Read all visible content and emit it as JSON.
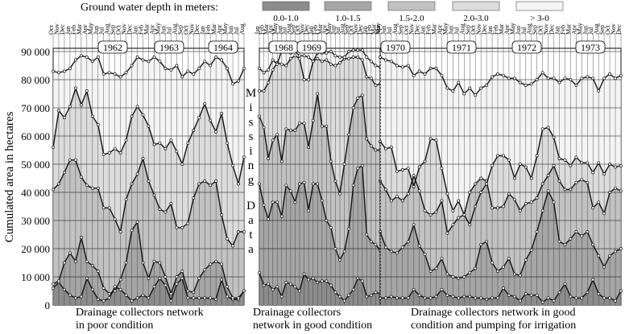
{
  "chart_data": {
    "type": "area",
    "title": "",
    "ylabel": "Cumulated area in hectares",
    "ylim": [
      0,
      95000
    ],
    "yticks": [
      0,
      10000,
      20000,
      30000,
      40000,
      50000,
      60000,
      70000,
      80000,
      90000
    ],
    "ytick_labels": [
      "0",
      "10 000",
      "20 000",
      "30 000",
      "40 000",
      "50 000",
      "60 000",
      "70 000",
      "80 000",
      "90 000"
    ],
    "legend_title": "Ground water depth in meters:",
    "legend": [
      {
        "label": "0.0-1.0",
        "color": "#8c8c8c"
      },
      {
        "label": "1.0-1.5",
        "color": "#a6a6a6"
      },
      {
        "label": "1.5-2.0",
        "color": "#c2c2c2"
      },
      {
        "label": "2.0-3.0",
        "color": "#dcdcdc"
      },
      {
        "label": "> 3-0",
        "color": "#f4f4f4"
      }
    ],
    "missing_data_label": [
      "M",
      "i",
      "s",
      "s",
      "i",
      "n",
      "g",
      "D",
      "a",
      "t",
      "a"
    ],
    "periods": [
      {
        "caption": [
          "Drainage collectors network",
          "in poor condition"
        ],
        "years": [
          "1962",
          "1963",
          "1964"
        ],
        "months": [
          "Oct",
          "Nov",
          "Dec",
          "Jan",
          "Feb",
          "Mar",
          "Apr",
          "May",
          "Jun",
          "Jul",
          "Aug",
          "Sep",
          "Oct",
          "Nov",
          "Dec",
          "Jan",
          "Feb",
          "Mar",
          "Apr",
          "May",
          "Jun",
          "Jul",
          "Aug",
          "Sep",
          "Oct",
          "Nov",
          "Dec",
          "Jan",
          "Feb",
          "Mar",
          "Apr",
          "May",
          "Jun",
          "Jul",
          "Aug"
        ],
        "series": [
          {
            "name": "0.0-1.0",
            "values": [
              6000,
              8000,
              5500,
              3500,
              2500,
              3000,
              9500,
              5500,
              2000,
              1500,
              2500,
              6500,
              5500,
              3500,
              1500,
              2500,
              3500,
              2500,
              6500,
              9500,
              7000,
              1500,
              7500,
              9500,
              2500,
              2500,
              2500,
              2500,
              2500,
              2000,
              9000,
              3000,
              2000,
              2000,
              5000
            ]
          },
          {
            "name": "1.0-1.5",
            "values": [
              7500,
              8500,
              15000,
              18500,
              15500,
              24000,
              15500,
              14000,
              12000,
              6000,
              4000,
              5000,
              9000,
              15000,
              26500,
              29500,
              15000,
              9500,
              15500,
              15000,
              10000,
              4000,
              10000,
              12000,
              5000,
              4500,
              9500,
              12500,
              14500,
              15500,
              14500,
              6500,
              2500,
              2500,
              5000
            ]
          },
          {
            "name": "1.5-2.0",
            "values": [
              41000,
              43000,
              47000,
              51500,
              51500,
              45500,
              42500,
              41500,
              41500,
              34500,
              34500,
              30500,
              26000,
              37500,
              43000,
              46500,
              52000,
              44000,
              39000,
              34000,
              33000,
              36000,
              27500,
              27500,
              29000,
              38000,
              43000,
              44000,
              42500,
              44000,
              32000,
              23500,
              21000,
              26000,
              26000
            ]
          },
          {
            "name": "2.0-3.0",
            "values": [
              56000,
              69000,
              66500,
              70500,
              77000,
              71000,
              76000,
              67000,
              64000,
              53500,
              54000,
              55500,
              54000,
              58500,
              67000,
              70500,
              67500,
              63500,
              57000,
              57500,
              55500,
              58500,
              54500,
              50000,
              57500,
              62000,
              66500,
              71500,
              65500,
              61500,
              68000,
              57500,
              49500,
              43000,
              52500
            ]
          },
          {
            "name": "> 3-0",
            "values": [
              83000,
              82500,
              83000,
              84000,
              87000,
              88500,
              88000,
              86500,
              88000,
              82000,
              82500,
              82000,
              81000,
              82500,
              85000,
              88000,
              87000,
              86500,
              88000,
              86500,
              84000,
              83500,
              85000,
              81000,
              83000,
              82000,
              84000,
              86500,
              85000,
              88000,
              87000,
              84000,
              78500,
              79500,
              84000
            ]
          }
        ]
      },
      {
        "caption": [
          "Drainage collectors",
          "network in good condition"
        ],
        "years": [
          "1968",
          "1969"
        ],
        "months": [
          "Jan",
          "Feb",
          "Mar",
          "Apr",
          "May",
          "Jun",
          "Jul",
          "Aug",
          "Sep",
          "Oct",
          "Nov",
          "Dec",
          "Jan",
          "Feb",
          "Mar",
          "Apr",
          "May",
          "Jun",
          "Jul",
          "Aug",
          "Sep",
          "Oct",
          "Nov",
          "Dec",
          "Jan",
          "Feb",
          "Mar",
          "Apr"
        ],
        "series": [
          {
            "name": "0.0-1.0",
            "values": [
              11500,
              7000,
              7500,
              5500,
              6500,
              3000,
              8000,
              7500,
              6500,
              5000,
              11000,
              9000,
              9500,
              8000,
              8500,
              8500,
              7000,
              4500,
              3000,
              1500,
              3500,
              5500,
              9500,
              8500,
              3000,
              3500,
              4500,
              4000
            ]
          },
          {
            "name": "1.0-1.5",
            "values": [
              43000,
              35500,
              30500,
              36500,
              36500,
              31500,
              42500,
              40500,
              36500,
              43000,
              43500,
              33500,
              43000,
              43000,
              37000,
              30000,
              27500,
              20000,
              16000,
              19000,
              27000,
              42500,
              48500,
              49500,
              25000,
              22500,
              21500,
              19500
            ]
          },
          {
            "name": "1.5-2.0",
            "values": [
              67000,
              63000,
              52000,
              58500,
              60500,
              51000,
              62500,
              62000,
              62000,
              64500,
              64500,
              56000,
              65500,
              75000,
              63500,
              63500,
              51000,
              44000,
              39500,
              50000,
              60500,
              70000,
              73500,
              74500,
              59000,
              56500,
              55000,
              55000
            ]
          },
          {
            "name": "2.0-3.0",
            "values": [
              76000,
              76000,
              79000,
              83500,
              86000,
              85500,
              85000,
              87500,
              88500,
              87500,
              80000,
              80000,
              86500,
              87500,
              86500,
              87000,
              85500,
              85000,
              86000,
              87500,
              87500,
              88000,
              88000,
              87000,
              81000,
              80500,
              78000,
              78500
            ]
          },
          {
            "name": "> 3-0",
            "values": [
              84000,
              82500,
              83500,
              87000,
              85500,
              90500,
              90500,
              89500,
              90000,
              88500,
              88500,
              88000,
              86500,
              89500,
              89500,
              89500,
              90000,
              88500,
              88000,
              88000,
              90000,
              90500,
              90500,
              90500,
              88000,
              86500,
              85000,
              84500
            ]
          }
        ]
      },
      {
        "caption": [
          "Drainage collectors network in good",
          "condition and pumping for irrigation"
        ],
        "years": [
          "1970",
          "1971",
          "1972",
          "1973"
        ],
        "months": [
          "May",
          "Jun",
          "Jul",
          "Aug",
          "Sep",
          "Oct",
          "Nov",
          "Dec",
          "Jan",
          "Feb",
          "Mar",
          "Apr",
          "May",
          "Jun",
          "Jul",
          "Aug",
          "Sep",
          "Oct",
          "Nov",
          "Dec",
          "Jan",
          "Feb",
          "Mar",
          "Apr",
          "May",
          "Jun",
          "Jul",
          "Aug",
          "Sep",
          "Oct",
          "Nov",
          "Dec",
          "Jan",
          "Feb",
          "Mar",
          "Apr",
          "May",
          "Jun",
          "Jul",
          "Aug",
          "Sep",
          "Oct",
          "Nov",
          "Dec"
        ],
        "series": [
          {
            "name": "0.0-1.0",
            "values": [
              2500,
              2500,
              3000,
              2500,
              2500,
              2500,
              5500,
              3500,
              2500,
              2500,
              3000,
              5500,
              3500,
              3000,
              2500,
              3000,
              3000,
              2500,
              2500,
              2000,
              2500,
              2500,
              6000,
              3500,
              3000,
              1500,
              4000,
              3500,
              3500,
              1000,
              2500,
              1500,
              4500,
              7500,
              3000,
              2500,
              2500,
              4500,
              9000,
              4000,
              2500,
              2500,
              1500,
              5000
            ]
          },
          {
            "name": "1.0-1.5",
            "values": [
              26000,
              20500,
              19000,
              18500,
              20500,
              22500,
              28500,
              21000,
              18000,
              12000,
              13000,
              16500,
              11000,
              10000,
              9500,
              10000,
              11500,
              13000,
              21500,
              22500,
              15000,
              12000,
              13500,
              16500,
              11000,
              10500,
              16000,
              19500,
              26000,
              33500,
              40500,
              36500,
              22500,
              21500,
              23500,
              26000,
              24500,
              26000,
              21500,
              17500,
              13500,
              17500,
              19000,
              20000
            ]
          },
          {
            "name": "1.5-2.0",
            "values": [
              44000,
              41000,
              37000,
              38500,
              37000,
              39500,
              46000,
              40500,
              33500,
              32000,
              33000,
              37000,
              25500,
              28500,
              31000,
              32000,
              40000,
              43000,
              45000,
              44000,
              34500,
              34500,
              35000,
              39500,
              37500,
              33500,
              36000,
              36500,
              38000,
              43000,
              46000,
              49500,
              44000,
              41000,
              41000,
              43500,
              44500,
              43500,
              34500,
              36500,
              32500,
              40000,
              41500,
              40500
            ]
          },
          {
            "name": "2.0-3.0",
            "values": [
              58000,
              55500,
              56000,
              47500,
              48000,
              48500,
              42000,
              49000,
              51000,
              59000,
              58500,
              48500,
              39500,
              33500,
              37000,
              32000,
              28500,
              35000,
              40000,
              43000,
              49500,
              53000,
              53000,
              51500,
              45000,
              50000,
              49000,
              45000,
              53000,
              62500,
              63000,
              59500,
              52000,
              51500,
              49500,
              52500,
              50500,
              50500,
              47000,
              50500,
              46500,
              50000,
              49000,
              49500
            ]
          },
          {
            "name": "> 3-0",
            "values": [
              88000,
              87000,
              86500,
              85000,
              84500,
              85000,
              81500,
              83000,
              82000,
              84000,
              84000,
              81500,
              77000,
              76000,
              79000,
              75000,
              77000,
              74500,
              77000,
              78000,
              81000,
              82000,
              81500,
              80500,
              80500,
              79000,
              78000,
              78500,
              80000,
              82500,
              80500,
              80500,
              79000,
              80500,
              80000,
              78000,
              80500,
              81000,
              80500,
              76000,
              80500,
              82000,
              80500,
              81500
            ]
          }
        ]
      }
    ]
  }
}
